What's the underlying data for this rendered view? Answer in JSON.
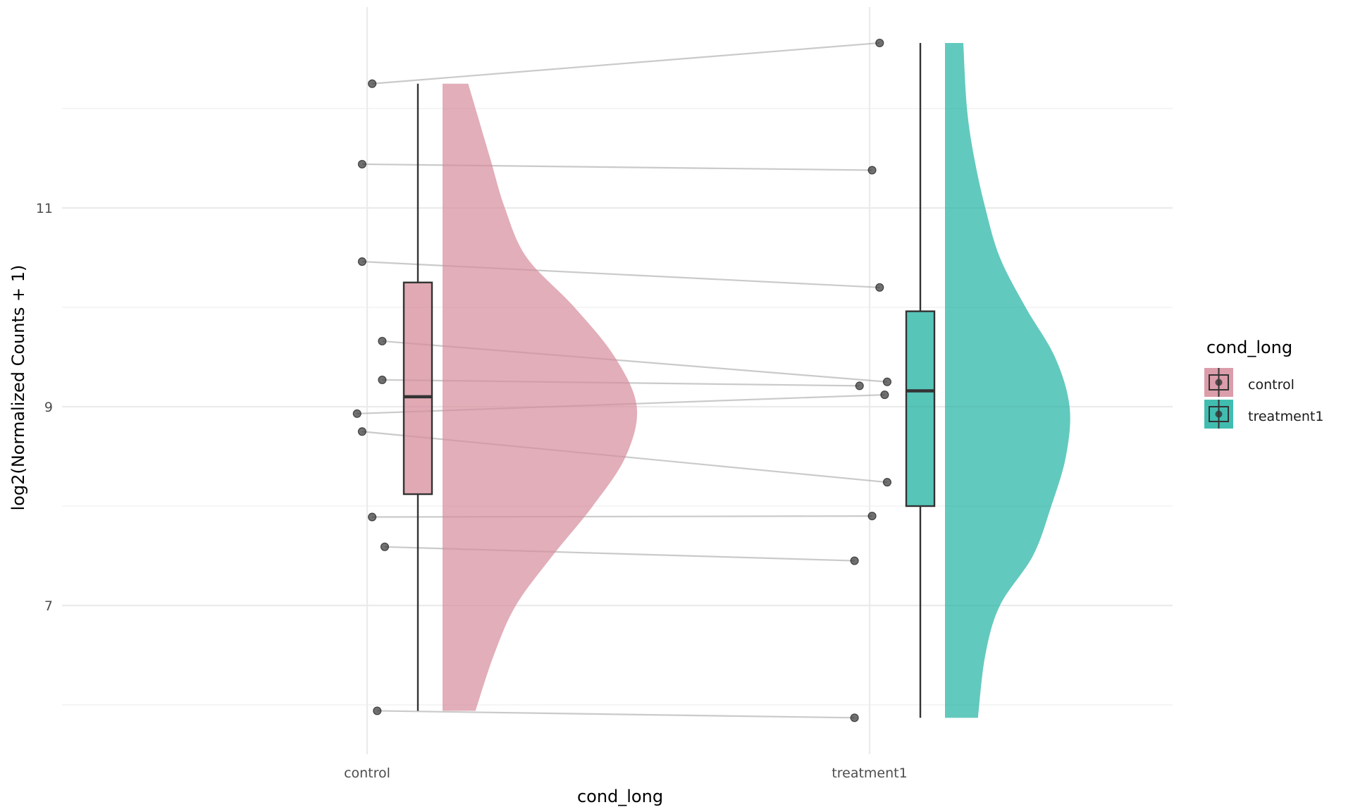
{
  "chart_data": {
    "type": "raincloud",
    "xlabel": "cond_long",
    "ylabel": "log2(Normalized Counts + 1)",
    "categories": [
      "control",
      "treatment1"
    ],
    "y_ticks": [
      7,
      9,
      11
    ],
    "y_minor_ticks": [
      6,
      8,
      10,
      12
    ],
    "ylim": [
      5.5,
      12.9
    ],
    "grid": true,
    "legend": {
      "title": "cond_long",
      "position": "right",
      "entries": [
        {
          "label": "control",
          "color": "#D58C9B"
        },
        {
          "label": "treatment1",
          "color": "#20B2A2"
        }
      ]
    },
    "series": [
      {
        "name": "control",
        "color": "#D58C9B",
        "points": [
          12.25,
          11.44,
          10.46,
          9.66,
          9.27,
          8.93,
          8.75,
          7.89,
          7.59,
          5.94
        ],
        "point_jitter": [
          0.01,
          -0.01,
          -0.01,
          0.03,
          0.03,
          -0.02,
          -0.01,
          0.01,
          0.035,
          0.02
        ],
        "box": {
          "min": 5.94,
          "q1": 8.12,
          "median": 9.1,
          "q3": 10.25,
          "max": 12.25
        },
        "density": [
          {
            "y": 5.94,
            "d": 0.09
          },
          {
            "y": 6.5,
            "d": 0.14
          },
          {
            "y": 7.0,
            "d": 0.2
          },
          {
            "y": 7.5,
            "d": 0.3
          },
          {
            "y": 8.0,
            "d": 0.41
          },
          {
            "y": 8.5,
            "d": 0.5
          },
          {
            "y": 9.0,
            "d": 0.53
          },
          {
            "y": 9.5,
            "d": 0.47
          },
          {
            "y": 10.0,
            "d": 0.36
          },
          {
            "y": 10.5,
            "d": 0.23
          },
          {
            "y": 11.0,
            "d": 0.17
          },
          {
            "y": 11.5,
            "d": 0.13
          },
          {
            "y": 12.0,
            "d": 0.09
          },
          {
            "y": 12.25,
            "d": 0.07
          }
        ]
      },
      {
        "name": "treatment1",
        "color": "#20B2A2",
        "points": [
          12.66,
          11.38,
          10.2,
          9.25,
          9.21,
          9.12,
          8.24,
          7.9,
          7.45,
          5.87
        ],
        "point_jitter": [
          0.02,
          0.005,
          0.02,
          0.035,
          -0.02,
          0.03,
          0.035,
          0.005,
          -0.03,
          -0.03
        ],
        "box": {
          "min": 5.87,
          "q1": 8.0,
          "median": 9.16,
          "q3": 9.96,
          "max": 12.66
        },
        "density": [
          {
            "y": 5.87,
            "d": 0.09
          },
          {
            "y": 6.5,
            "d": 0.11
          },
          {
            "y": 7.0,
            "d": 0.15
          },
          {
            "y": 7.5,
            "d": 0.24
          },
          {
            "y": 8.0,
            "d": 0.29
          },
          {
            "y": 8.5,
            "d": 0.33
          },
          {
            "y": 9.0,
            "d": 0.34
          },
          {
            "y": 9.5,
            "d": 0.3
          },
          {
            "y": 10.0,
            "d": 0.22
          },
          {
            "y": 10.5,
            "d": 0.15
          },
          {
            "y": 11.0,
            "d": 0.11
          },
          {
            "y": 11.5,
            "d": 0.08
          },
          {
            "y": 12.0,
            "d": 0.06
          },
          {
            "y": 12.66,
            "d": 0.05
          }
        ]
      }
    ]
  }
}
